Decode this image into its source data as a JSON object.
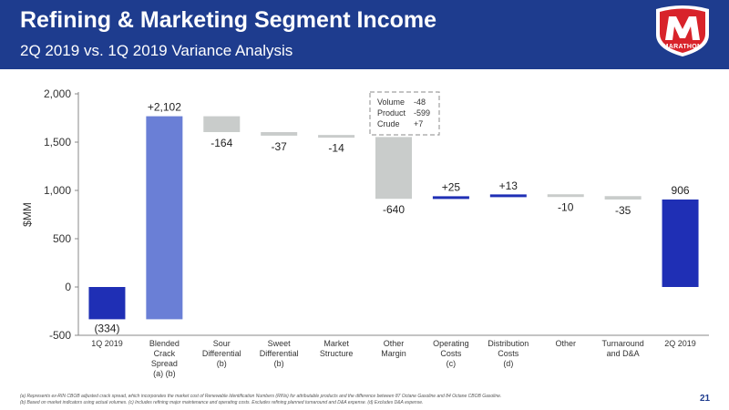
{
  "header": {
    "title": "Refining & Marketing Segment Income",
    "subtitle": "2Q 2019 vs. 1Q 2019 Variance Analysis",
    "logo_text": "MARATHON"
  },
  "colors": {
    "header_bg": "#1e3c8e",
    "bar_blue": "#6a7fd6",
    "bar_darkblue": "#1f2fb5",
    "bar_gray": "#c9cccb",
    "callout_border": "#a0a0a0"
  },
  "chart_data": {
    "type": "bar",
    "subtype": "waterfall",
    "ylabel": "$MM",
    "ylim": [
      -500,
      2000
    ],
    "yticks": [
      "-500",
      "0",
      "500",
      "1,000",
      "1,500",
      "2,000"
    ],
    "grid": false,
    "categories": [
      {
        "label": "1Q 2019",
        "note": ""
      },
      {
        "label": "Blended Crack Spread",
        "note": "(a) (b)"
      },
      {
        "label": "Sour Differential",
        "note": "(b)"
      },
      {
        "label": "Sweet Differential",
        "note": "(b)"
      },
      {
        "label": "Market Structure",
        "note": ""
      },
      {
        "label": "Other Margin",
        "note": ""
      },
      {
        "label": "Operating Costs",
        "note": "(c)"
      },
      {
        "label": "Distribution Costs",
        "note": "(d)"
      },
      {
        "label": "Other",
        "note": ""
      },
      {
        "label": "Turnaround and D&A",
        "note": ""
      },
      {
        "label": "2Q 2019",
        "note": ""
      }
    ],
    "values": [
      -334,
      2102,
      -164,
      -37,
      -14,
      -640,
      25,
      13,
      -10,
      -35,
      906
    ],
    "data_labels": [
      "(334)",
      "+2,102",
      "-164",
      "-37",
      "-14",
      "-640",
      "+25",
      "+13",
      "-10",
      "-35",
      "906"
    ],
    "bar_kinds": [
      "total",
      "increase",
      "decrease",
      "decrease",
      "decrease",
      "decrease",
      "increase",
      "increase",
      "decrease",
      "decrease",
      "total"
    ],
    "callout": {
      "attached_to": "Other Margin",
      "rows": [
        {
          "label": "Volume",
          "value": "-48"
        },
        {
          "label": "Product",
          "value": "-599"
        },
        {
          "label": "Crude",
          "value": "+7"
        }
      ]
    }
  },
  "footnotes": [
    "(a) Represents ex-RIN CBOB adjusted crack spread, which incorporates the market cost of Renewable Identification Numbers (RINs) for attributable products and the difference between 87 Octane Gasoline and 84 Octane CBOB Gasoline.",
    "(b) Based on market indicators using actual volumes.   (c) Includes refining major maintenance and operating costs. Excludes refining planned turnaround and D&A expense.   (d) Excludes D&A expense."
  ],
  "page_number": "21"
}
